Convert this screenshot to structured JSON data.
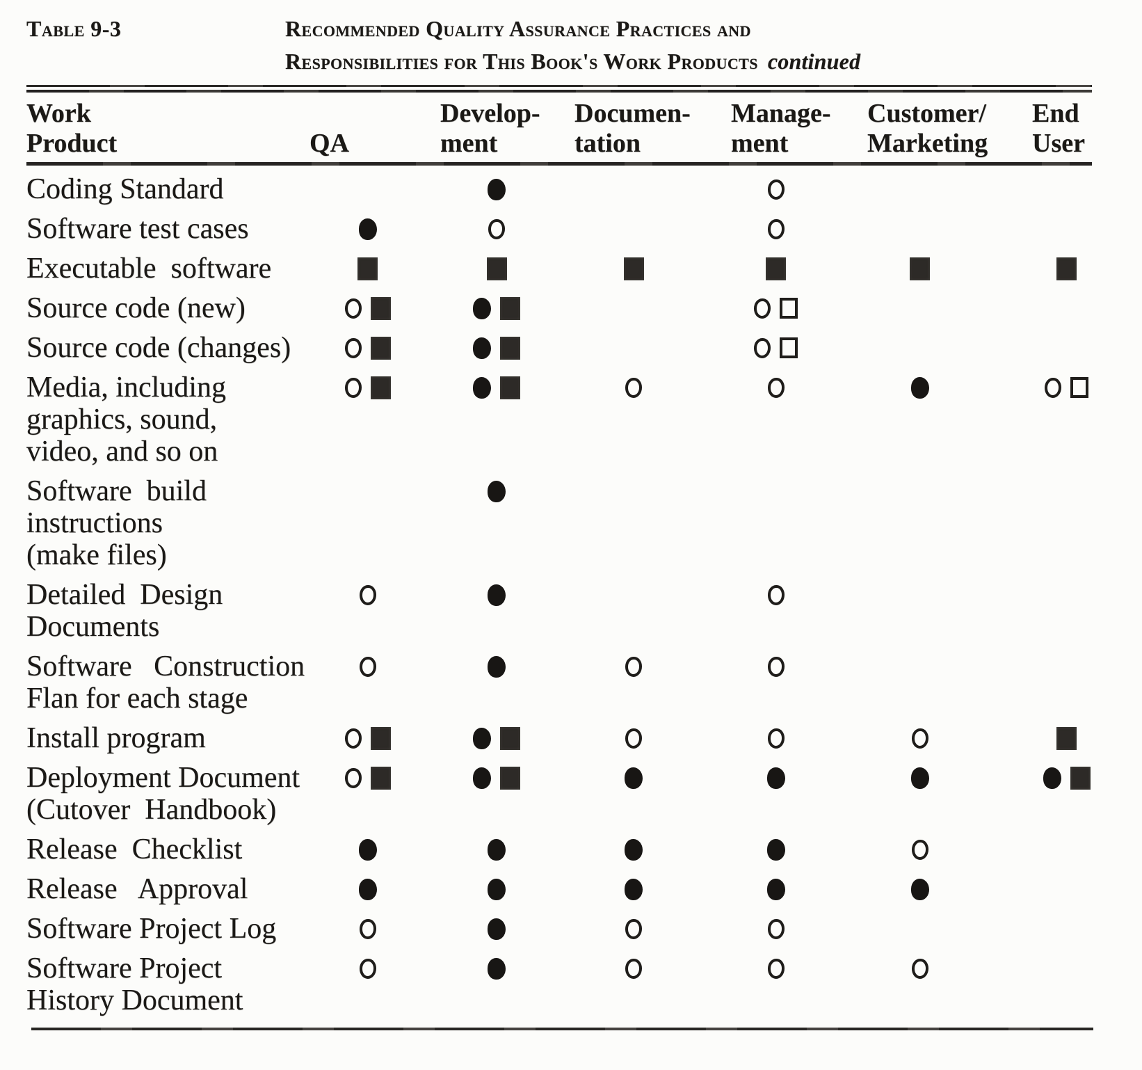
{
  "header": {
    "table_label": "Table 9-3",
    "title_line1": "Recommended Quality Assurance Practices and",
    "title_line2": "Responsibilities for This Book's Work Products",
    "title_suffix": "continued"
  },
  "table": {
    "columns": [
      {
        "id": "work-product",
        "lines": [
          "Work",
          "Product"
        ]
      },
      {
        "id": "qa",
        "lines": [
          "",
          "QA"
        ]
      },
      {
        "id": "development",
        "lines": [
          "Develop-",
          "ment"
        ]
      },
      {
        "id": "documentation",
        "lines": [
          "Documen-",
          "tation"
        ]
      },
      {
        "id": "management",
        "lines": [
          "Manage-",
          "ment"
        ]
      },
      {
        "id": "customer-marketing",
        "lines": [
          "Customer/",
          "Marketing"
        ]
      },
      {
        "id": "end-user",
        "lines": [
          "End",
          "User"
        ]
      }
    ],
    "mark_glyphs": {
      "filled-circle": "●",
      "open-circle": "○",
      "filled-square": "■",
      "open-square": "□"
    },
    "rows": [
      {
        "product": [
          "Coding Standard"
        ],
        "marks": [
          [],
          [
            "filled-circle"
          ],
          [],
          [
            "open-circle"
          ],
          [],
          []
        ]
      },
      {
        "product": [
          "Software test cases"
        ],
        "marks": [
          [
            "filled-circle"
          ],
          [
            "open-circle"
          ],
          [],
          [
            "open-circle"
          ],
          [],
          []
        ]
      },
      {
        "product": [
          "Executable  software"
        ],
        "marks": [
          [
            "filled-square"
          ],
          [
            "filled-square"
          ],
          [
            "filled-square"
          ],
          [
            "filled-square"
          ],
          [
            "filled-square"
          ],
          [
            "filled-square"
          ]
        ]
      },
      {
        "product": [
          "Source code (new)"
        ],
        "marks": [
          [
            "open-circle",
            "filled-square"
          ],
          [
            "filled-circle",
            "filled-square"
          ],
          [],
          [
            "open-circle",
            "open-square"
          ],
          [],
          []
        ]
      },
      {
        "product": [
          "Source code (changes)"
        ],
        "marks": [
          [
            "open-circle",
            "filled-square"
          ],
          [
            "filled-circle",
            "filled-square"
          ],
          [],
          [
            "open-circle",
            "open-square"
          ],
          [],
          []
        ]
      },
      {
        "product": [
          "Media, including",
          "graphics, sound,",
          "video, and so on"
        ],
        "marks": [
          [
            "open-circle",
            "filled-square"
          ],
          [
            "filled-circle",
            "filled-square"
          ],
          [
            "open-circle"
          ],
          [
            "open-circle"
          ],
          [
            "filled-circle"
          ],
          [
            "open-circle",
            "open-square"
          ]
        ]
      },
      {
        "product": [
          "Software  build",
          "instructions",
          "(make files)"
        ],
        "marks": [
          [],
          [
            "filled-circle"
          ],
          [],
          [],
          [],
          []
        ]
      },
      {
        "product": [
          "Detailed  Design",
          "Documents"
        ],
        "marks": [
          [
            "open-circle"
          ],
          [
            "filled-circle"
          ],
          [],
          [
            "open-circle"
          ],
          [],
          []
        ]
      },
      {
        "product": [
          "Software   Construction",
          "Flan for each stage"
        ],
        "marks": [
          [
            "open-circle"
          ],
          [
            "filled-circle"
          ],
          [
            "open-circle"
          ],
          [
            "open-circle"
          ],
          [],
          []
        ]
      },
      {
        "product": [
          "Install program"
        ],
        "marks": [
          [
            "open-circle",
            "filled-square"
          ],
          [
            "filled-circle",
            "filled-square"
          ],
          [
            "open-circle"
          ],
          [
            "open-circle"
          ],
          [
            "open-circle"
          ],
          [
            "filled-square"
          ]
        ]
      },
      {
        "product": [
          "Deployment Document",
          "(Cutover  Handbook)"
        ],
        "marks": [
          [
            "open-circle",
            "filled-square"
          ],
          [
            "filled-circle",
            "filled-square"
          ],
          [
            "filled-circle"
          ],
          [
            "filled-circle"
          ],
          [
            "filled-circle"
          ],
          [
            "filled-circle",
            "filled-square"
          ]
        ]
      },
      {
        "product": [
          "Release  Checklist"
        ],
        "marks": [
          [
            "filled-circle"
          ],
          [
            "filled-circle"
          ],
          [
            "filled-circle"
          ],
          [
            "filled-circle"
          ],
          [
            "open-circle"
          ],
          []
        ]
      },
      {
        "product": [
          "Release   Approval"
        ],
        "marks": [
          [
            "filled-circle"
          ],
          [
            "filled-circle"
          ],
          [
            "filled-circle"
          ],
          [
            "filled-circle"
          ],
          [
            "filled-circle"
          ],
          []
        ]
      },
      {
        "product": [
          "Software Project Log"
        ],
        "marks": [
          [
            "open-circle"
          ],
          [
            "filled-circle"
          ],
          [
            "open-circle"
          ],
          [
            "open-circle"
          ],
          [],
          []
        ]
      },
      {
        "product": [
          "Software Project",
          "History Document"
        ],
        "marks": [
          [
            "open-circle"
          ],
          [
            "filled-circle"
          ],
          [
            "open-circle"
          ],
          [
            "open-circle"
          ],
          [
            "open-circle"
          ],
          []
        ]
      }
    ]
  }
}
